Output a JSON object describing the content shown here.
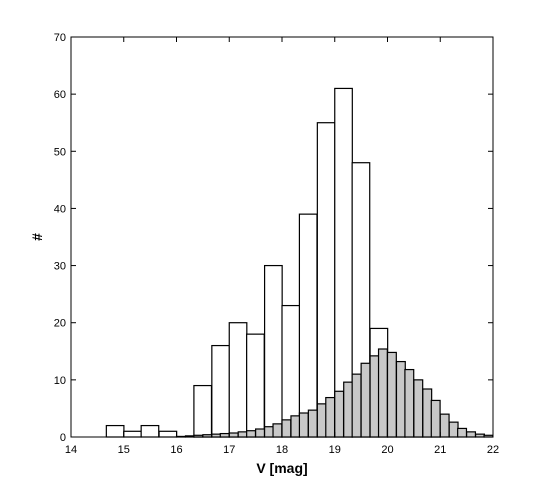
{
  "chart_data": {
    "type": "bar",
    "xlabel": "V [mag]",
    "ylabel": "#",
    "xlim": [
      14,
      22
    ],
    "ylim": [
      0,
      70
    ],
    "x_ticks": [
      "14",
      "15",
      "16",
      "17",
      "18",
      "19",
      "20",
      "21",
      "22"
    ],
    "y_ticks": [
      "0",
      "10",
      "20",
      "30",
      "40",
      "50",
      "60",
      "70"
    ],
    "grid": false,
    "series": [
      {
        "style": "outline",
        "fill": "#ffffff",
        "bin_width": 0.333,
        "bin_starts": [
          14.67,
          15.0,
          15.33,
          15.67,
          16.0,
          16.33,
          16.67,
          17.0,
          17.33,
          17.67,
          18.0,
          18.33,
          18.67,
          19.0,
          19.33,
          19.67,
          20.0,
          20.33,
          20.67,
          21.0,
          21.33
        ],
        "values": [
          2,
          1,
          2,
          1,
          0,
          9,
          16,
          20,
          18,
          30,
          23,
          39,
          55,
          61,
          48,
          19,
          12,
          6,
          2,
          0,
          0
        ]
      },
      {
        "style": "filled",
        "fill": "#c8c8c8",
        "bin_width": 0.167,
        "bin_starts": [
          16.0,
          16.17,
          16.33,
          16.5,
          16.67,
          16.83,
          17.0,
          17.17,
          17.33,
          17.5,
          17.67,
          17.83,
          18.0,
          18.17,
          18.33,
          18.5,
          18.67,
          18.83,
          19.0,
          19.17,
          19.33,
          19.5,
          19.67,
          19.83,
          20.0,
          20.17,
          20.33,
          20.5,
          20.67,
          20.83,
          21.0,
          21.17,
          21.33,
          21.5,
          21.67,
          21.83
        ],
        "values": [
          0.1,
          0.2,
          0.3,
          0.4,
          0.5,
          0.6,
          0.7,
          0.9,
          1.1,
          1.4,
          1.8,
          2.3,
          3.0,
          3.7,
          4.2,
          4.7,
          5.8,
          6.9,
          8.0,
          9.6,
          11.0,
          12.9,
          14.2,
          15.4,
          14.8,
          13.2,
          11.8,
          10.0,
          8.4,
          6.4,
          4.0,
          2.6,
          1.5,
          0.9,
          0.5,
          0.3
        ]
      }
    ]
  }
}
